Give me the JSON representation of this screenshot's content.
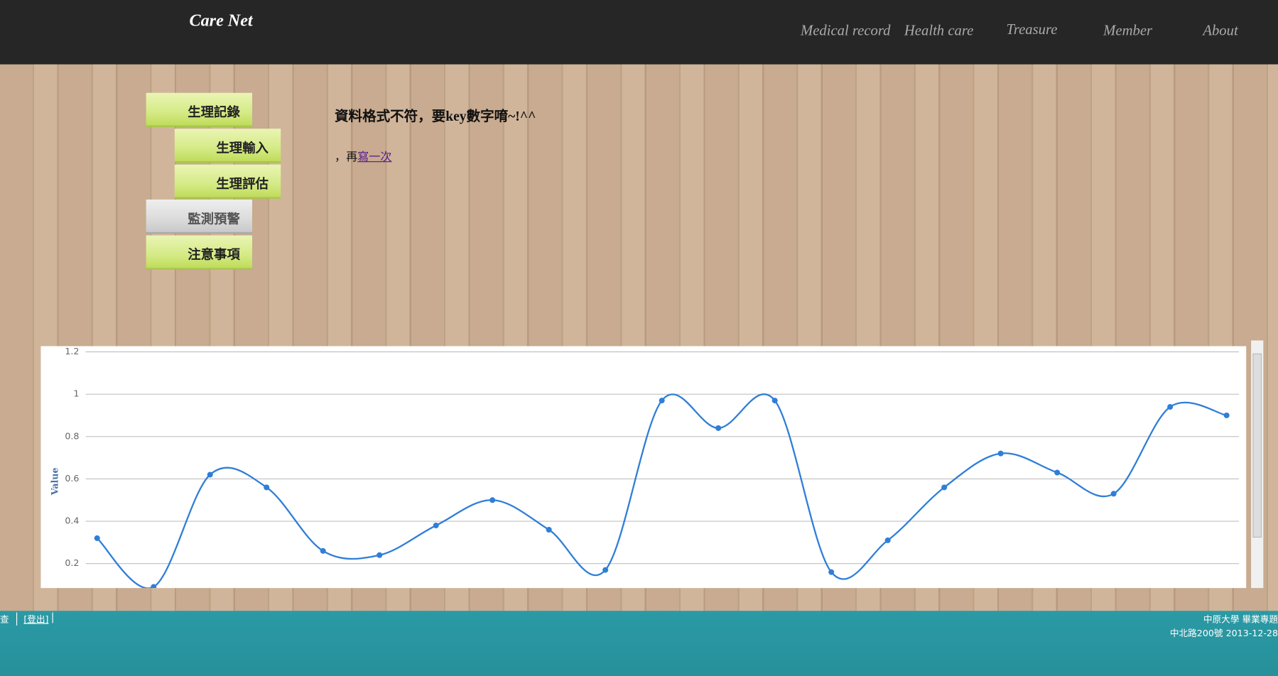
{
  "nav": {
    "brand": "Care Net",
    "links": [
      "Medical record",
      "Health care",
      "Treasure",
      "Member",
      "About"
    ]
  },
  "sidebar": {
    "items": [
      "生理記錄",
      "生理輸入",
      "生理評估",
      "監測預警",
      "注意事項"
    ]
  },
  "message": {
    "title": "資料格式不符，要key數字唷~!^^",
    "retry_prefix": "，再",
    "retry_link": "寫一次"
  },
  "chart_data": {
    "type": "line",
    "y_label": "Value",
    "categories": [
      null,
      null,
      null,
      null,
      null,
      null,
      null,
      null,
      null,
      null,
      null,
      null,
      null,
      null,
      null,
      null,
      null,
      null,
      null,
      null,
      null
    ],
    "series": [
      {
        "name": null,
        "color": "#2f7ed8",
        "values": [
          0.32,
          0.09,
          0.62,
          0.56,
          0.26,
          0.24,
          0.38,
          0.5,
          0.36,
          0.17,
          0.97,
          0.84,
          0.97,
          0.16,
          0.31,
          0.56,
          0.72,
          0.63,
          0.53,
          0.94,
          0.9
        ]
      }
    ],
    "ylim": [
      0.08,
      1.2
    ],
    "yticks": [
      0.2,
      0.4,
      0.6,
      0.8,
      1,
      1.2
    ],
    "grid": true
  },
  "footer": {
    "left": [
      "查",
      "[登出]"
    ],
    "right": [
      "中原大學 畢業專題",
      "中北路200號 2013-12-28"
    ]
  }
}
